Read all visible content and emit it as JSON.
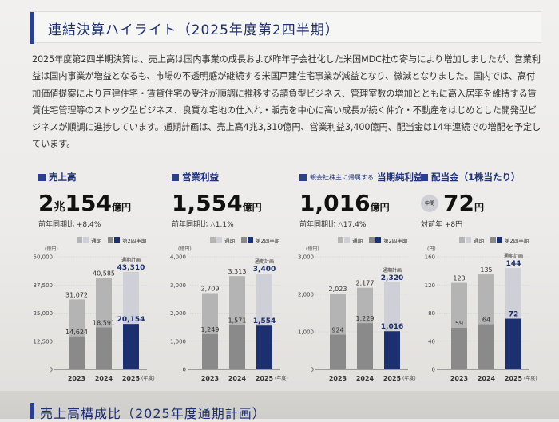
{
  "title": "連結決算ハイライト（2025年度第2四半期）",
  "body_text": "2025年度第2四半期決算は、売上高は国内事業の成長および昨年子会社化した米国MDC社の寄与により増加しましたが、営業利益は国内事業が増益となるも、市場の不透明感が継続する米国戸建住宅事業が減益となり、微減となりました。国内では、高付加価値提案により戸建住宅・賃貸住宅の受注が順調に推移する請負型ビジネス、管理室数の増加とともに高入居率を維持する賃貸住宅管理等のストック型ビジネス、良質な宅地の仕入れ・販売を中心に高い成長が続く仲介・不動産をはじめとした開発型ビジネスが順調に進捗しています。通期計画は、売上高4兆3,310億円、営業利益3,400億円、配当金は14年連続での増配を予定しています。",
  "kpis": [
    {
      "label": "売上高",
      "prefix": "",
      "value_a": "2",
      "mid": "兆",
      "value_b": "154",
      "unit": "億円",
      "sub": "前年同期比 +8.4%"
    },
    {
      "label": "営業利益",
      "prefix": "",
      "value_a": "1,554",
      "mid": "",
      "value_b": "",
      "unit": "億円",
      "sub": "前年同期比 △1.1%"
    },
    {
      "label": "当期純利益",
      "prefix": "親会社株主に帰属する",
      "value_a": "1,016",
      "mid": "",
      "value_b": "",
      "unit": "億円",
      "sub": "前年同期比 △17.4%"
    },
    {
      "label": "配当金（1株当たり）",
      "badge": "中間",
      "value_a": "72",
      "mid": "",
      "value_b": "",
      "unit": "円",
      "sub": "対前年 +8円"
    }
  ],
  "legend": {
    "full": "通期",
    "q2": "第2四半期"
  },
  "colors": {
    "navy": "#1c2f6e",
    "full_past": "#b4b4b4",
    "full_plan": "#cfcfd8",
    "q2_past": "#8a8a8a"
  },
  "chart_data": [
    {
      "type": "bar",
      "unit": "(億円)",
      "categories": [
        "2023",
        "2024",
        "2025"
      ],
      "xsuffix": "(年度)",
      "ylim": [
        0,
        50000
      ],
      "yticks": [
        "0",
        "12,500",
        "25,000",
        "37,500",
        "50,000"
      ],
      "ytick_values": [
        0,
        12500,
        25000,
        37500,
        50000
      ],
      "plan_label": "通期計画",
      "series": [
        {
          "name": "通期",
          "values": [
            31072,
            40585,
            43310
          ],
          "labels": [
            "31,072",
            "40,585",
            "43,310"
          ]
        },
        {
          "name": "第2四半期",
          "values": [
            14624,
            18591,
            20154
          ],
          "labels": [
            "14,624",
            "18,591",
            "20,154"
          ]
        }
      ]
    },
    {
      "type": "bar",
      "unit": "(億円)",
      "categories": [
        "2023",
        "2024",
        "2025"
      ],
      "xsuffix": "(年度)",
      "ylim": [
        0,
        4000
      ],
      "yticks": [
        "0",
        "1,000",
        "2,000",
        "3,000",
        "4,000"
      ],
      "ytick_values": [
        0,
        1000,
        2000,
        3000,
        4000
      ],
      "plan_label": "通期計画",
      "series": [
        {
          "name": "通期",
          "values": [
            2709,
            3313,
            3400
          ],
          "labels": [
            "2,709",
            "3,313",
            "3,400"
          ]
        },
        {
          "name": "第2四半期",
          "values": [
            1249,
            1571,
            1554
          ],
          "labels": [
            "1,249",
            "1,571",
            "1,554"
          ]
        }
      ]
    },
    {
      "type": "bar",
      "unit": "(億円)",
      "categories": [
        "2023",
        "2024",
        "2025"
      ],
      "xsuffix": "(年度)",
      "ylim": [
        0,
        3000
      ],
      "yticks": [
        "0",
        "1,000",
        "2,000",
        "3,000"
      ],
      "ytick_values": [
        0,
        1000,
        2000,
        3000
      ],
      "plan_label": "通期計画",
      "series": [
        {
          "name": "通期",
          "values": [
            2023,
            2177,
            2320
          ],
          "labels": [
            "2,023",
            "2,177",
            "2,320"
          ]
        },
        {
          "name": "第2四半期",
          "values": [
            924,
            1229,
            1016
          ],
          "labels": [
            "924",
            "1,229",
            "1,016"
          ]
        }
      ]
    },
    {
      "type": "bar",
      "unit": "(円)",
      "categories": [
        "2023",
        "2024",
        "2025"
      ],
      "xsuffix": "(年度)",
      "ylim": [
        0,
        160
      ],
      "yticks": [
        "0",
        "40",
        "80",
        "120",
        "160"
      ],
      "ytick_values": [
        0,
        40,
        80,
        120,
        160
      ],
      "plan_label": "通期計画",
      "series": [
        {
          "name": "通期",
          "values": [
            123,
            135,
            144
          ],
          "labels": [
            "123",
            "135",
            "144"
          ]
        },
        {
          "name": "第2四半期",
          "values": [
            59,
            64,
            72
          ],
          "labels": [
            "59",
            "64",
            "72"
          ]
        }
      ]
    }
  ],
  "bottom_title": "売上高構成比（2025年度通期計画）"
}
